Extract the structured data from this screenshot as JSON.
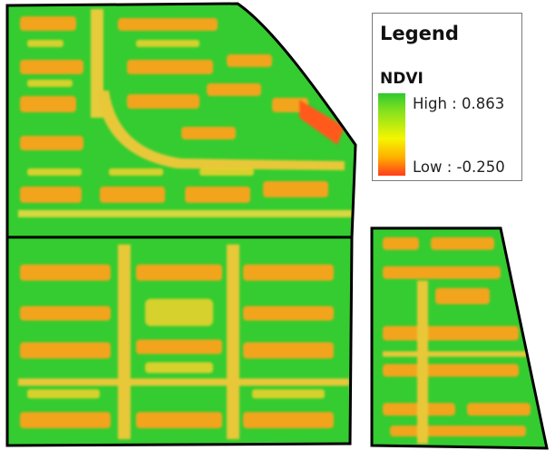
{
  "legend": {
    "title": "Legend",
    "layer": "NDVI",
    "high_label": "High : 0.863",
    "low_label": "Low : -0.250",
    "high_color": "#2ec92e",
    "mid_color": "#f5f500",
    "low_color": "#ff3b1a"
  },
  "map": {
    "vegetation_color": "#33cc33",
    "building_color": "#f0a020",
    "road_color": "#e8c830",
    "boundary_color": "#000000"
  }
}
